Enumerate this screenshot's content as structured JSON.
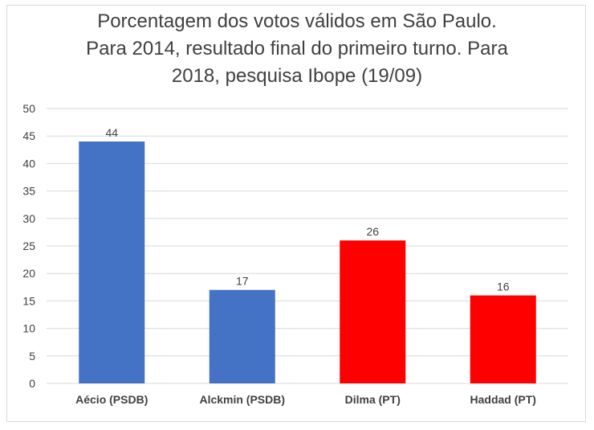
{
  "chart_data": {
    "type": "bar",
    "title_lines": [
      "Porcentagem dos votos válidos em São Paulo.",
      "Para 2014, resultado final do primeiro turno. Para",
      "2018, pesquisa Ibope (19/09)"
    ],
    "categories": [
      "Aécio (PSDB)",
      "Alckmin (PSDB)",
      "Dilma (PT)",
      "Haddad (PT)"
    ],
    "values": [
      44,
      17,
      26,
      16
    ],
    "bar_colors": [
      "#4472c4",
      "#4472c4",
      "#ff0000",
      "#ff0000"
    ],
    "ylim": [
      0,
      50
    ],
    "yticks": [
      "0",
      "5",
      "10",
      "15",
      "20",
      "25",
      "30",
      "35",
      "40",
      "45",
      "50"
    ],
    "grid": true,
    "legend": "none",
    "xlabel": "",
    "ylabel": ""
  }
}
